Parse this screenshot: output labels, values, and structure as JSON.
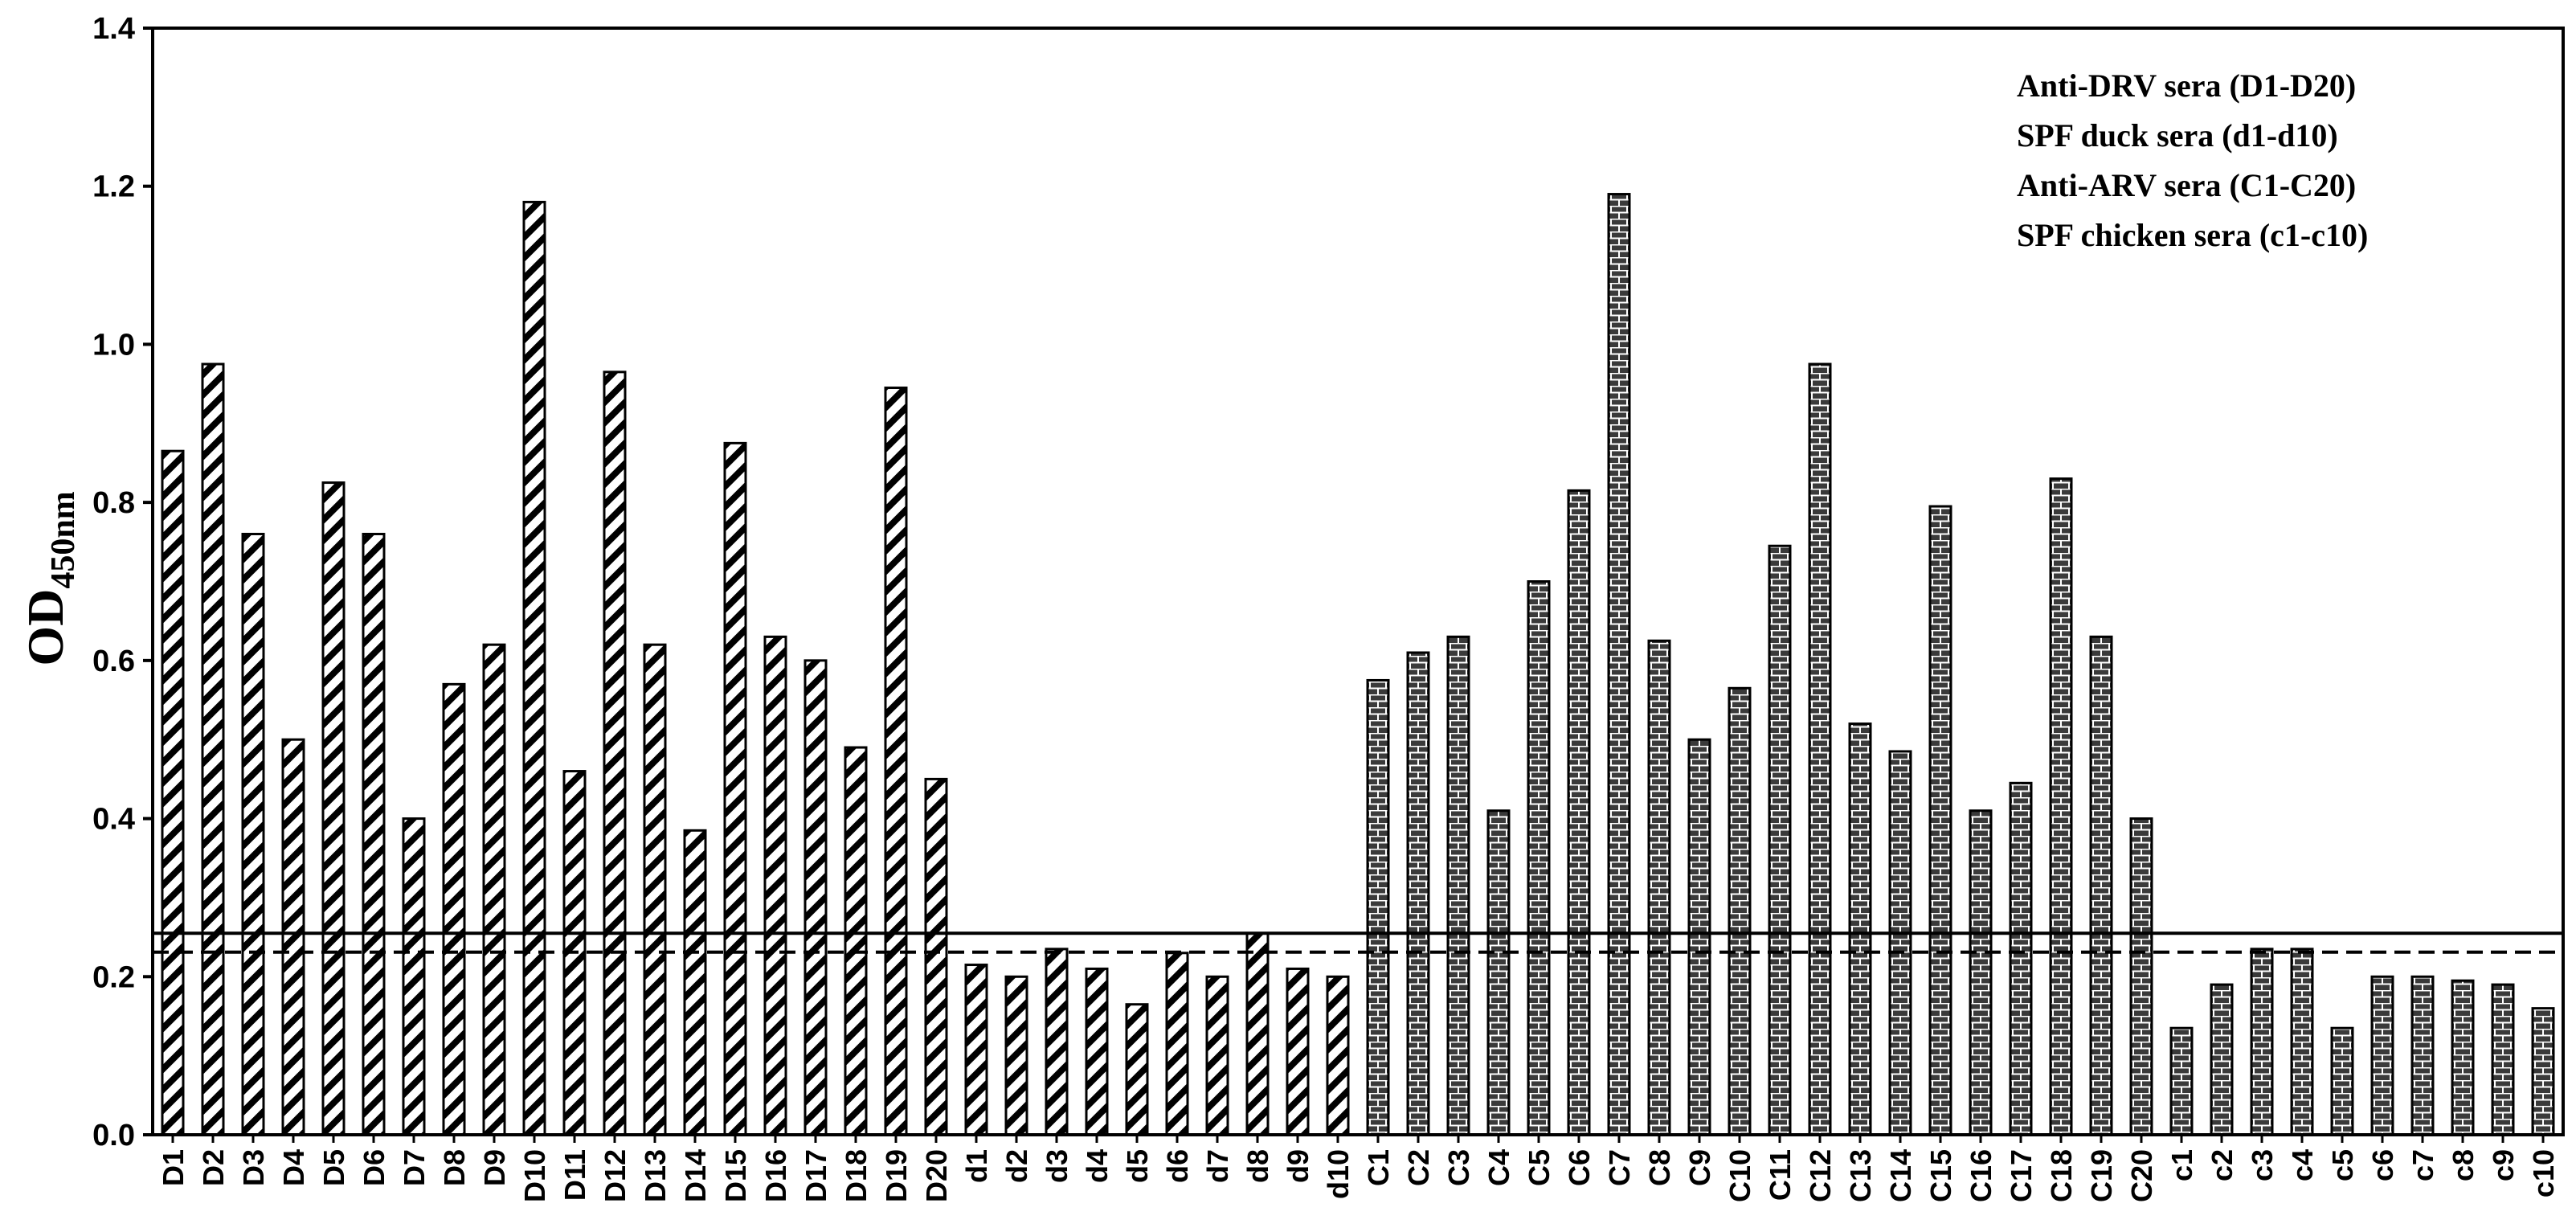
{
  "chart_data": {
    "type": "bar",
    "y_label": "OD",
    "y_label_sub": "450nm",
    "categories": [
      "D1",
      "D2",
      "D3",
      "D4",
      "D5",
      "D6",
      "D7",
      "D8",
      "D9",
      "D10",
      "D11",
      "D12",
      "D13",
      "D14",
      "D15",
      "D16",
      "D17",
      "D18",
      "D19",
      "D20",
      "d1",
      "d2",
      "d3",
      "d4",
      "d5",
      "d6",
      "d7",
      "d8",
      "d9",
      "d10",
      "C1",
      "C2",
      "C3",
      "C4",
      "C5",
      "C6",
      "C7",
      "C8",
      "C9",
      "C10",
      "C11",
      "C12",
      "C13",
      "C14",
      "C15",
      "C16",
      "C17",
      "C18",
      "C19",
      "C20",
      "c1",
      "c2",
      "c3",
      "c4",
      "c5",
      "c6",
      "c7",
      "c8",
      "c9",
      "c10"
    ],
    "series": [
      {
        "name": "Anti-DRV sera (D1-D20)",
        "pattern": "hatch",
        "values": [
          0.865,
          0.975,
          0.76,
          0.5,
          0.825,
          0.76,
          0.4,
          0.57,
          0.62,
          1.18,
          0.46,
          0.965,
          0.62,
          0.385,
          0.875,
          0.63,
          0.6,
          0.49,
          0.945,
          0.45,
          null,
          null,
          null,
          null,
          null,
          null,
          null,
          null,
          null,
          null,
          null,
          null,
          null,
          null,
          null,
          null,
          null,
          null,
          null,
          null,
          null,
          null,
          null,
          null,
          null,
          null,
          null,
          null,
          null,
          null,
          null,
          null,
          null,
          null,
          null,
          null,
          null,
          null,
          null,
          null
        ]
      },
      {
        "name": "SPF duck sera (d1-d10)",
        "pattern": "hatch",
        "values": [
          null,
          null,
          null,
          null,
          null,
          null,
          null,
          null,
          null,
          null,
          null,
          null,
          null,
          null,
          null,
          null,
          null,
          null,
          null,
          null,
          0.215,
          0.2,
          0.235,
          0.21,
          0.165,
          0.23,
          0.2,
          0.255,
          0.21,
          0.2,
          null,
          null,
          null,
          null,
          null,
          null,
          null,
          null,
          null,
          null,
          null,
          null,
          null,
          null,
          null,
          null,
          null,
          null,
          null,
          null,
          null,
          null,
          null,
          null,
          null,
          null,
          null,
          null,
          null,
          null
        ]
      },
      {
        "name": "Anti-ARV sera (C1-C20)",
        "pattern": "brick",
        "values": [
          null,
          null,
          null,
          null,
          null,
          null,
          null,
          null,
          null,
          null,
          null,
          null,
          null,
          null,
          null,
          null,
          null,
          null,
          null,
          null,
          null,
          null,
          null,
          null,
          null,
          null,
          null,
          null,
          null,
          null,
          0.575,
          0.61,
          0.63,
          0.41,
          0.7,
          0.815,
          1.19,
          0.625,
          0.5,
          0.565,
          0.745,
          0.975,
          0.52,
          0.485,
          0.795,
          0.41,
          0.445,
          0.83,
          0.63,
          0.4,
          null,
          null,
          null,
          null,
          null,
          null,
          null,
          null,
          null,
          null
        ]
      },
      {
        "name": "SPF chicken sera (c1-c10)",
        "pattern": "brick",
        "values": [
          null,
          null,
          null,
          null,
          null,
          null,
          null,
          null,
          null,
          null,
          null,
          null,
          null,
          null,
          null,
          null,
          null,
          null,
          null,
          null,
          null,
          null,
          null,
          null,
          null,
          null,
          null,
          null,
          null,
          null,
          null,
          null,
          null,
          null,
          null,
          null,
          null,
          null,
          null,
          null,
          null,
          null,
          null,
          null,
          null,
          null,
          null,
          null,
          null,
          null,
          0.135,
          0.19,
          0.235,
          0.235,
          0.135,
          0.2,
          0.2,
          0.195,
          0.19,
          0.16
        ]
      }
    ],
    "hlines": [
      {
        "value": 0.255,
        "style": "solid"
      },
      {
        "value": 0.231,
        "style": "dashed"
      }
    ],
    "ylim": [
      0,
      1.4
    ],
    "yticks": [
      {
        "value": 0,
        "label": "0.0"
      },
      0.2,
      0.4,
      0.6,
      0.8,
      {
        "value": 1,
        "label": "1.0"
      },
      1.2,
      1.4
    ],
    "legend": "upper right"
  }
}
